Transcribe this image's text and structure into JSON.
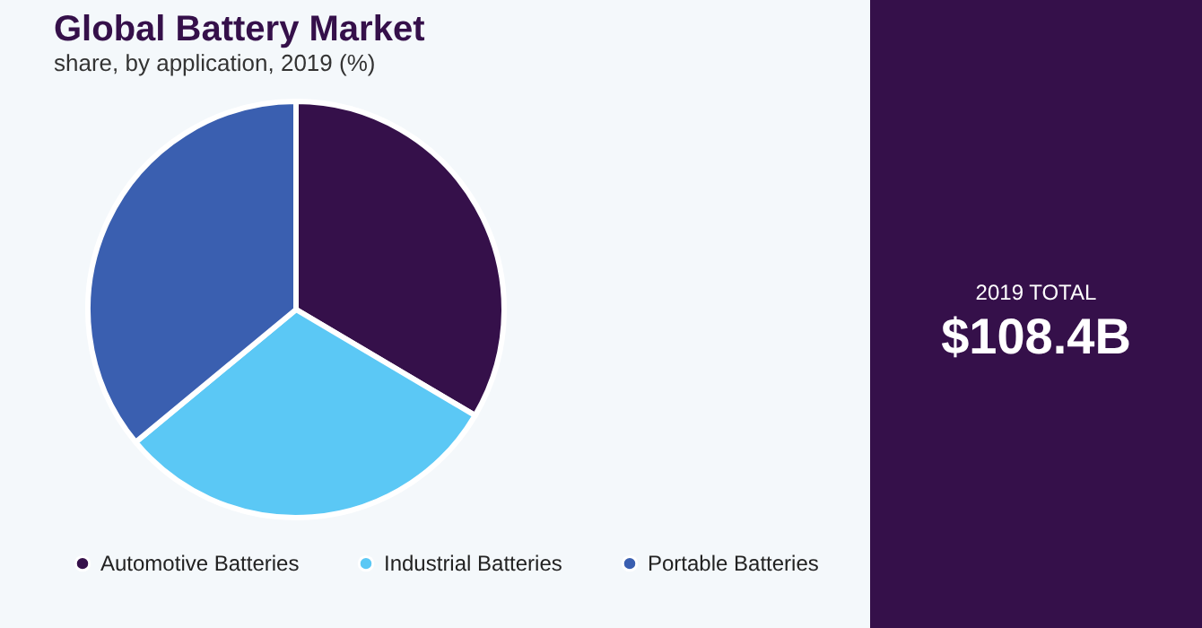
{
  "chart_data": {
    "type": "pie",
    "title": "Global Battery Market",
    "subtitle": "share, by application, 2019 (%)",
    "categories": [
      "Automotive Batteries",
      "Industrial Batteries",
      "Portable Batteries"
    ],
    "values": [
      33.5,
      30.5,
      36
    ],
    "colors": [
      "#35104a",
      "#5bc8f5",
      "#3a5fb0"
    ],
    "legend": "bottom",
    "annotations": [
      "2019 TOTAL",
      "$108.4B"
    ]
  }
}
